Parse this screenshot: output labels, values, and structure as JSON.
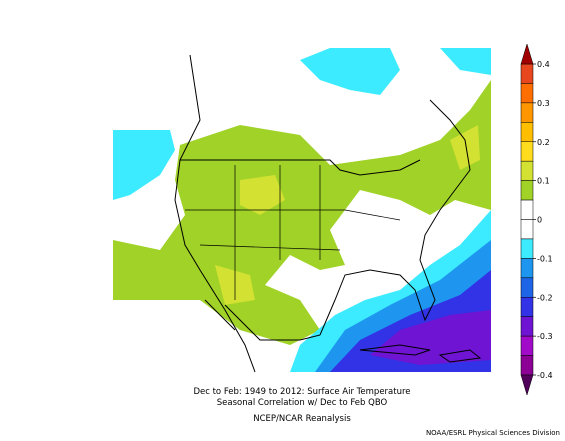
{
  "map": {
    "title_lines": [
      "Dec to Feb: 1949 to 2012: Surface Air Temperature",
      "Seasonal Correlation w/ Dec to Feb QBO"
    ],
    "source": "NCEP/NCAR Reanalysis",
    "credit": "NOAA/ESRL Physical Sciences Division",
    "colorbar": {
      "ticks": [
        0.4,
        0.3,
        0.2,
        0.1,
        0,
        -0.1,
        -0.2,
        -0.3,
        -0.4
      ],
      "colors": [
        "#e8461e",
        "#ff6e00",
        "#ff9600",
        "#ffbe00",
        "#ffdc1e",
        "#d2e132",
        "#a0d228",
        "#ffffff",
        "#ffffff",
        "#3cebff",
        "#1e96f0",
        "#1e64e6",
        "#3232e6",
        "#6e14d2",
        "#a00ac8",
        "#8c0096"
      ],
      "over_color": "#a00000",
      "under_color": "#50005a"
    }
  }
}
